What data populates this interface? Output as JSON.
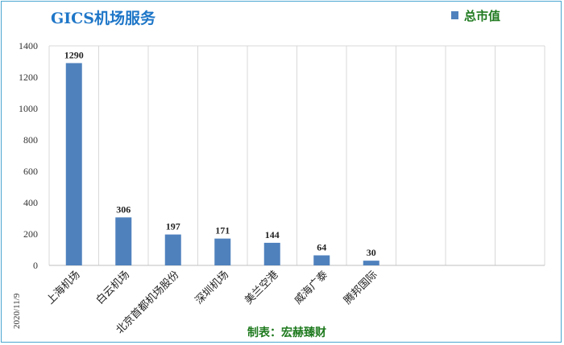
{
  "chart_data": {
    "type": "bar",
    "title": "GICS机场服务",
    "categories": [
      "上海机场",
      "白云机场",
      "北京首都机场股份",
      "深圳机场",
      "美兰空港",
      "威海广泰",
      "腾邦国际",
      "",
      "",
      ""
    ],
    "series": [
      {
        "name": "总市值",
        "values": [
          1290,
          306,
          197,
          171,
          144,
          64,
          30,
          null,
          null,
          null
        ]
      }
    ],
    "data_labels": [
      "1290",
      "306",
      "197",
      "171",
      "144",
      "64",
      "30"
    ],
    "ylim": [
      0,
      1400
    ],
    "yticks": [
      0,
      200,
      400,
      600,
      800,
      1000,
      1200,
      1400
    ],
    "ytick_labels": [
      "0",
      "200",
      "400",
      "600",
      "800",
      "1000",
      "1200",
      "1400"
    ],
    "grid": "vertical",
    "legend": "top-right",
    "bar_color": "#4f81bd"
  },
  "date_label": "2020/11/9",
  "credit": "制表：宏赫臻财"
}
